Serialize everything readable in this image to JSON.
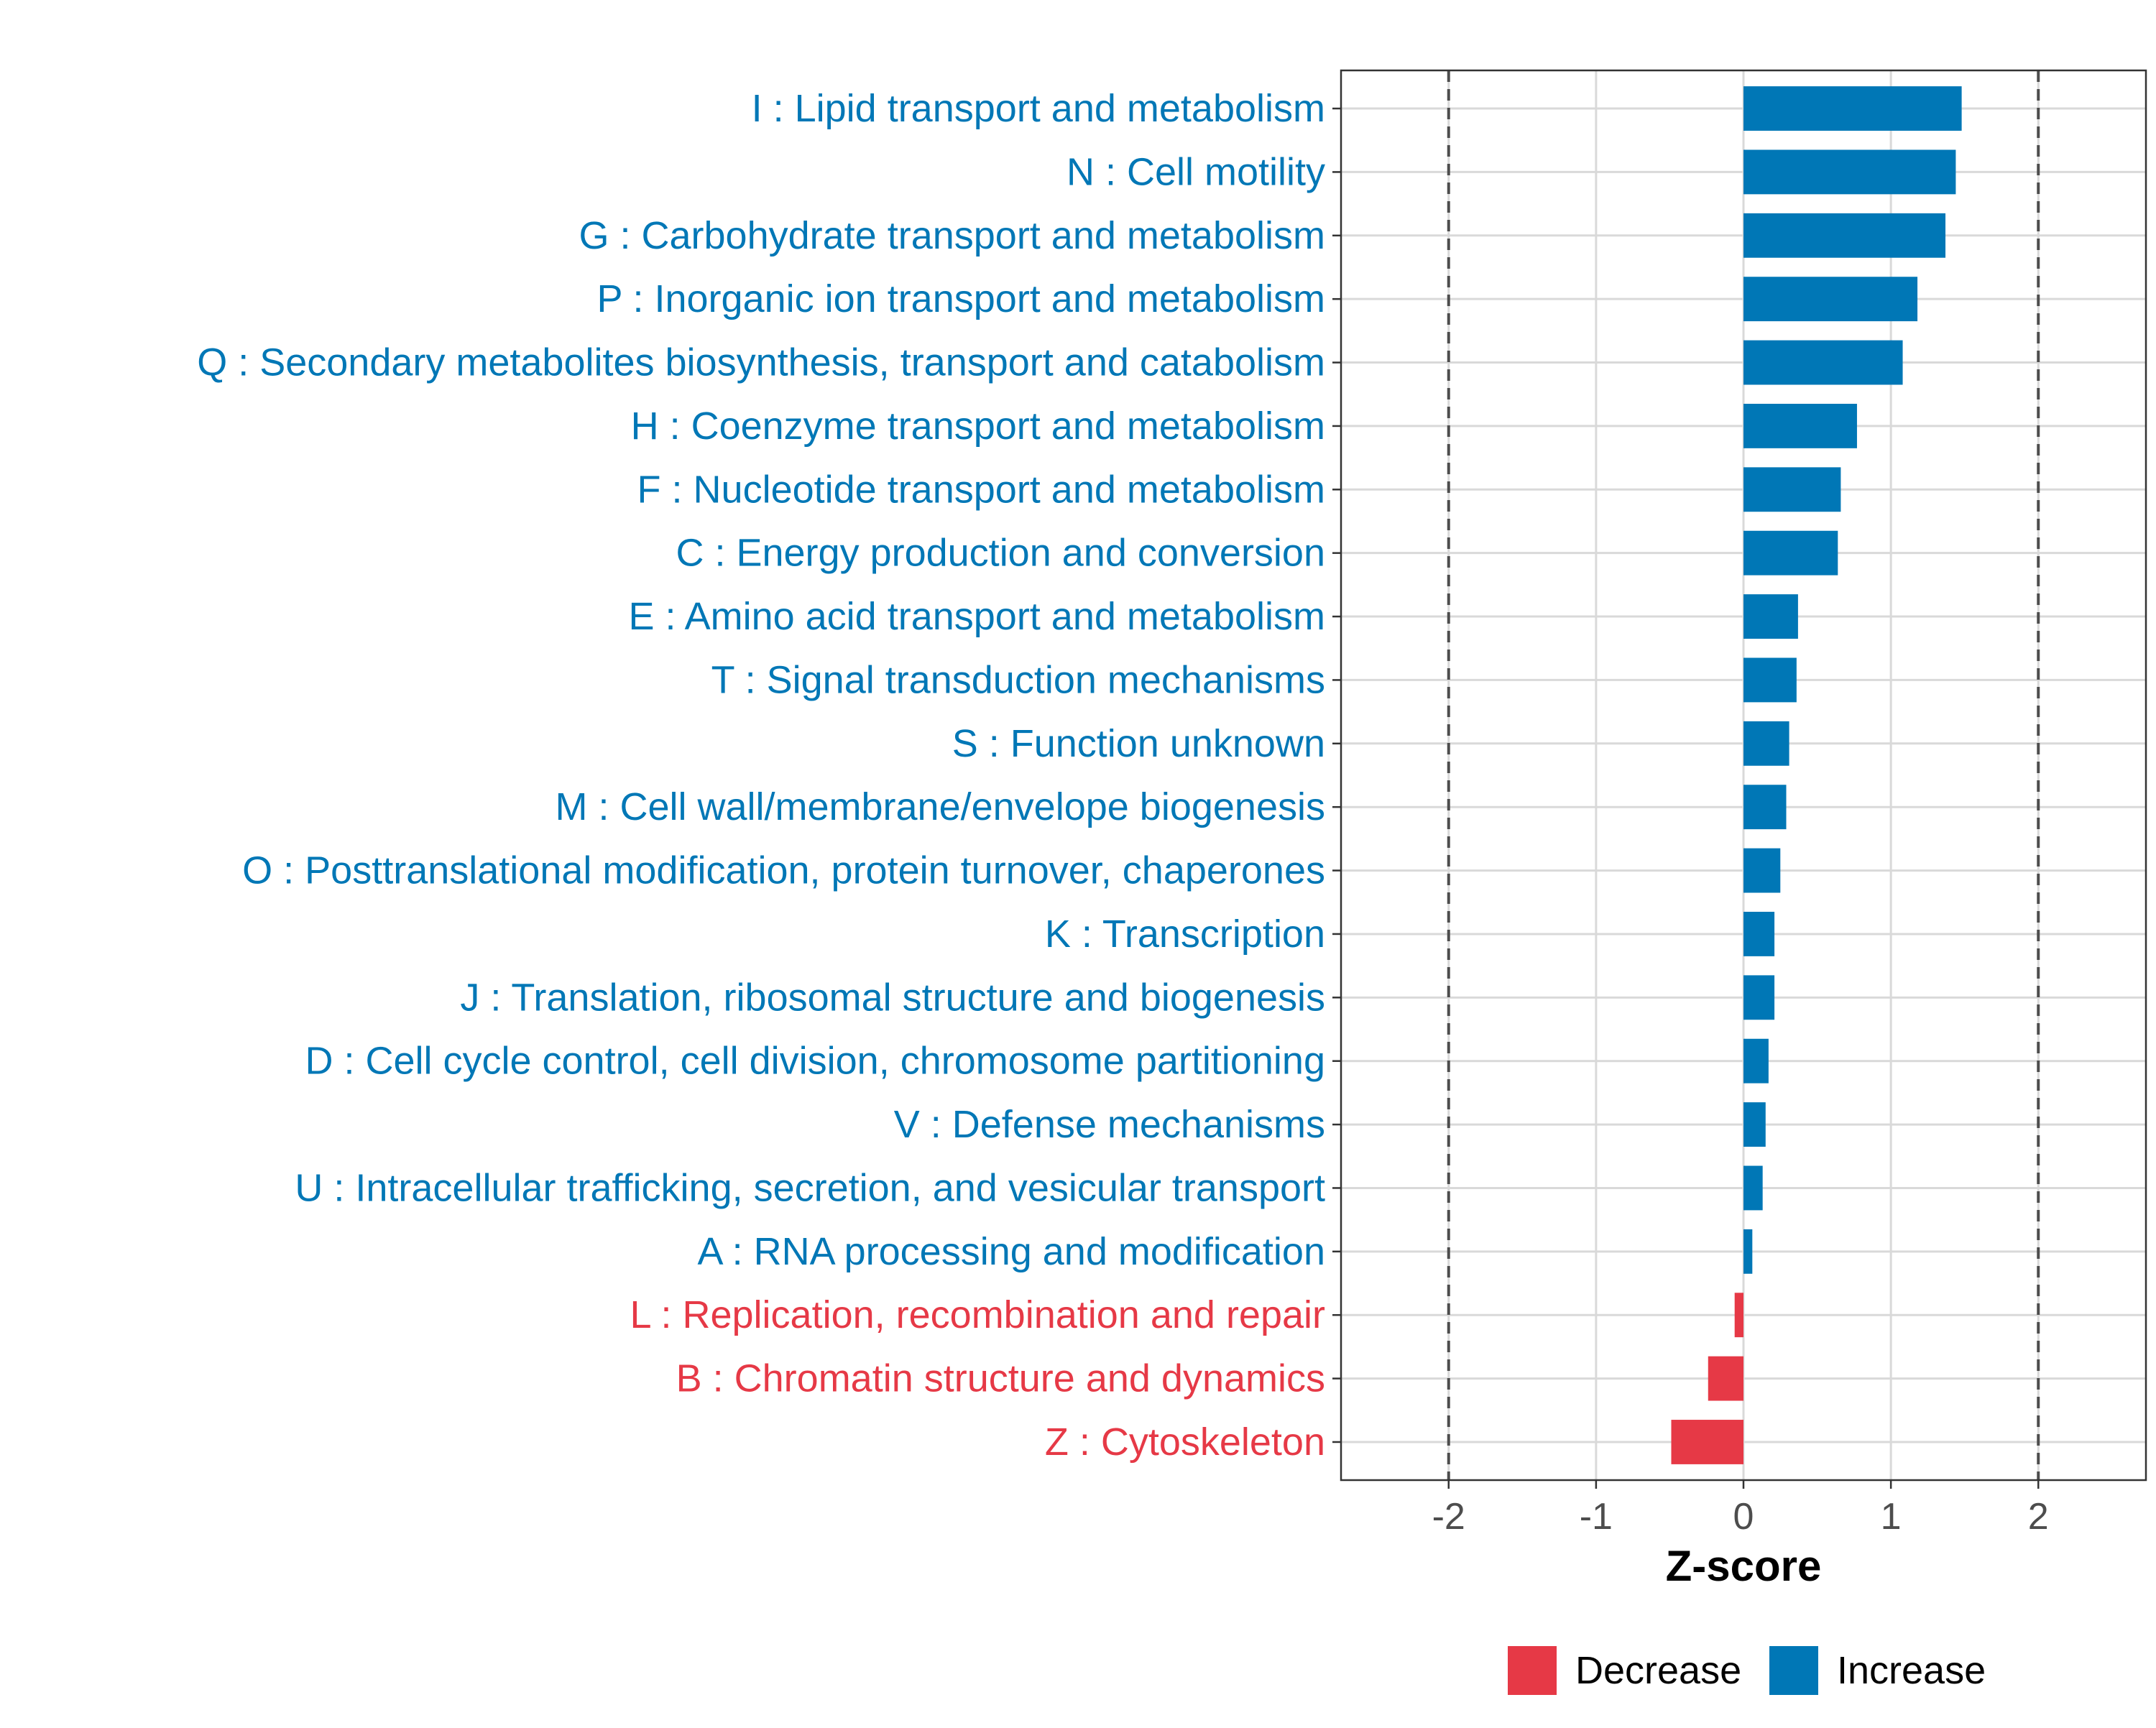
{
  "chart_data": {
    "type": "bar",
    "orientation": "horizontal",
    "categories": [
      "I : Lipid transport and metabolism",
      "N : Cell motility",
      "G : Carbohydrate transport and metabolism",
      "P : Inorganic ion transport and metabolism",
      "Q : Secondary metabolites biosynthesis, transport and catabolism",
      "H : Coenzyme transport and metabolism",
      "F : Nucleotide transport and metabolism",
      "C : Energy production and conversion",
      "E : Amino acid transport and metabolism",
      "T : Signal transduction mechanisms",
      "S : Function unknown",
      "M : Cell wall/membrane/envelope biogenesis",
      "O : Posttranslational modification, protein turnover, chaperones",
      "K : Transcription",
      "J : Translation, ribosomal structure and biogenesis",
      "D : Cell cycle control, cell division, chromosome partitioning",
      "V : Defense mechanisms",
      "U : Intracellular trafficking, secretion, and vesicular transport",
      "A : RNA processing and modification",
      "L : Replication, recombination and repair",
      "B : Chromatin structure and dynamics",
      "Z : Cytoskeleton"
    ],
    "values": [
      1.48,
      1.44,
      1.37,
      1.18,
      1.08,
      0.77,
      0.66,
      0.64,
      0.37,
      0.36,
      0.31,
      0.29,
      0.25,
      0.21,
      0.21,
      0.17,
      0.15,
      0.13,
      0.06,
      -0.06,
      -0.24,
      -0.49
    ],
    "groups": [
      "Increase",
      "Increase",
      "Increase",
      "Increase",
      "Increase",
      "Increase",
      "Increase",
      "Increase",
      "Increase",
      "Increase",
      "Increase",
      "Increase",
      "Increase",
      "Increase",
      "Increase",
      "Increase",
      "Increase",
      "Increase",
      "Increase",
      "Decrease",
      "Decrease",
      "Decrease"
    ],
    "xlabel": "Z-score",
    "ylabel": "",
    "xlim": [
      -2.73,
      2.73
    ],
    "xticks": [
      -2,
      -1,
      0,
      1,
      2
    ],
    "xtick_labels": [
      "-2",
      "-1",
      "0",
      "1",
      "2"
    ],
    "reference_lines": [
      -2,
      2
    ],
    "grid": true,
    "legend": {
      "position": "bottom",
      "entries": [
        {
          "label": "Decrease",
          "color": "#e63946"
        },
        {
          "label": "Increase",
          "color": "#0077b6"
        }
      ]
    },
    "colors": {
      "Increase": "#0077b6",
      "Decrease": "#e63946",
      "grid": "#d9d9d9",
      "reference_line": "#4d4d4d",
      "axis_text": "#4d4d4d"
    }
  }
}
